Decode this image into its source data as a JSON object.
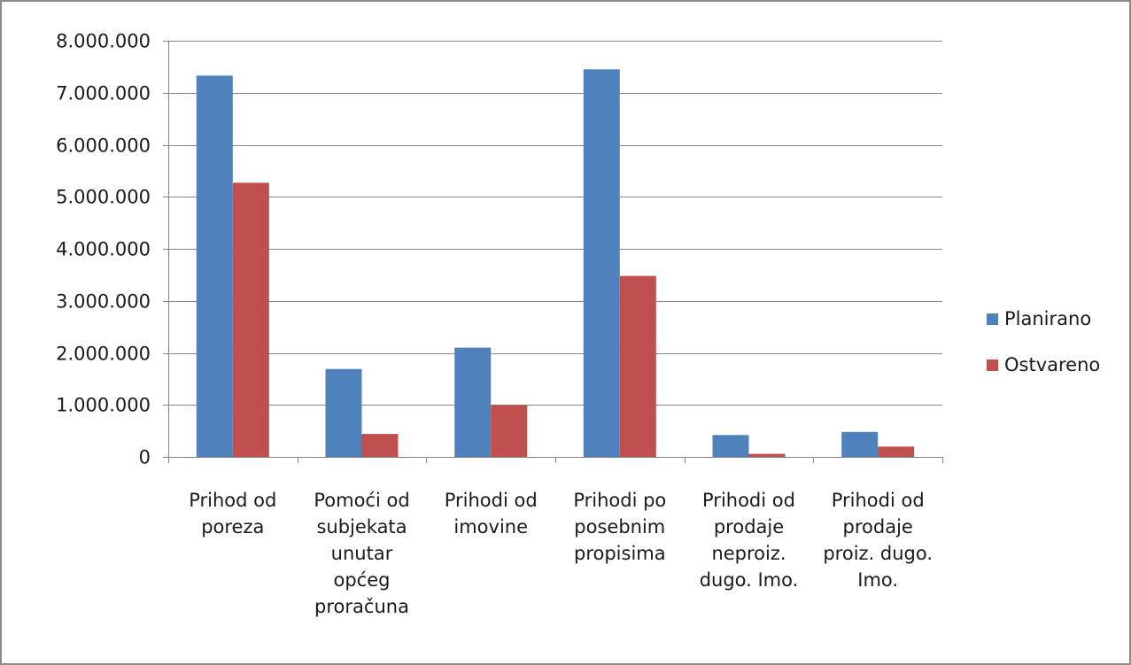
{
  "chart_data": {
    "type": "bar",
    "title": "",
    "xlabel": "",
    "ylabel": "",
    "ylim": [
      0,
      8000000
    ],
    "yticks": [
      0,
      1000000,
      2000000,
      3000000,
      4000000,
      5000000,
      6000000,
      7000000,
      8000000
    ],
    "ytick_labels": [
      "0",
      "1.000.000",
      "2.000.000",
      "3.000.000",
      "4.000.000",
      "5.000.000",
      "6.000.000",
      "7.000.000",
      "8.000.000"
    ],
    "grid": true,
    "legend_position": "right",
    "categories": [
      [
        "Prihod od",
        "poreza"
      ],
      [
        "Pomoći od",
        "subjekata",
        "unutar",
        "općeg",
        "proračuna"
      ],
      [
        "Prihodi od",
        "imovine"
      ],
      [
        "Prihodi po",
        "posebnim",
        "propisima"
      ],
      [
        "Prihodi od",
        "prodaje",
        "neproiz.",
        "dugo. Imo."
      ],
      [
        "Prihodi od",
        "prodaje",
        "proiz. dugo.",
        "Imo."
      ]
    ],
    "series": [
      {
        "name": "Planirano",
        "color": "#4f81bd",
        "values": [
          7330000,
          1690000,
          2100000,
          7450000,
          420000,
          480000
        ]
      },
      {
        "name": "Ostvareno",
        "color": "#c0504d",
        "values": [
          5270000,
          440000,
          1000000,
          3480000,
          60000,
          200000
        ]
      }
    ]
  }
}
